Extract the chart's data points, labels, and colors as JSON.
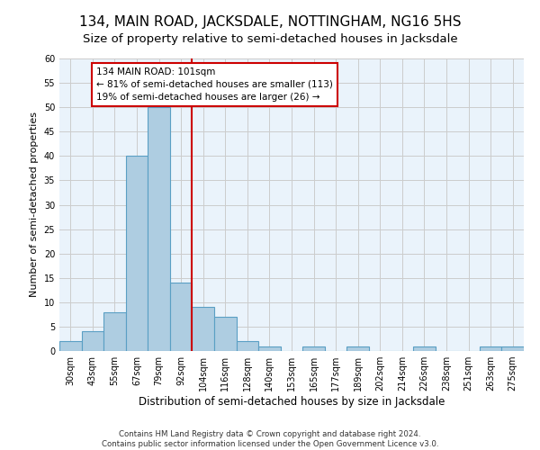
{
  "title": "134, MAIN ROAD, JACKSDALE, NOTTINGHAM, NG16 5HS",
  "subtitle": "Size of property relative to semi-detached houses in Jacksdale",
  "xlabel": "Distribution of semi-detached houses by size in Jacksdale",
  "ylabel": "Number of semi-detached properties",
  "footer_line1": "Contains HM Land Registry data © Crown copyright and database right 2024.",
  "footer_line2": "Contains public sector information licensed under the Open Government Licence v3.0.",
  "bin_labels": [
    "30sqm",
    "43sqm",
    "55sqm",
    "67sqm",
    "79sqm",
    "92sqm",
    "104sqm",
    "116sqm",
    "128sqm",
    "140sqm",
    "153sqm",
    "165sqm",
    "177sqm",
    "189sqm",
    "202sqm",
    "214sqm",
    "226sqm",
    "238sqm",
    "251sqm",
    "263sqm",
    "275sqm"
  ],
  "bin_values": [
    2,
    4,
    8,
    40,
    50,
    14,
    9,
    7,
    2,
    1,
    0,
    1,
    0,
    1,
    0,
    0,
    1,
    0,
    0,
    1,
    1
  ],
  "bar_color": "#aecde1",
  "bar_edge_color": "#5a9fc4",
  "annotation_text": "134 MAIN ROAD: 101sqm\n← 81% of semi-detached houses are smaller (113)\n19% of semi-detached houses are larger (26) →",
  "annotation_box_color": "#ffffff",
  "annotation_box_edge_color": "#cc0000",
  "vline_color": "#cc0000",
  "ylim": [
    0,
    60
  ],
  "yticks": [
    0,
    5,
    10,
    15,
    20,
    25,
    30,
    35,
    40,
    45,
    50,
    55,
    60
  ],
  "grid_color": "#cccccc",
  "bg_color": "#eaf3fb",
  "title_fontsize": 11,
  "subtitle_fontsize": 9.5,
  "xlabel_fontsize": 8.5,
  "ylabel_fontsize": 8,
  "tick_fontsize": 7,
  "annotation_fontsize": 7.5
}
